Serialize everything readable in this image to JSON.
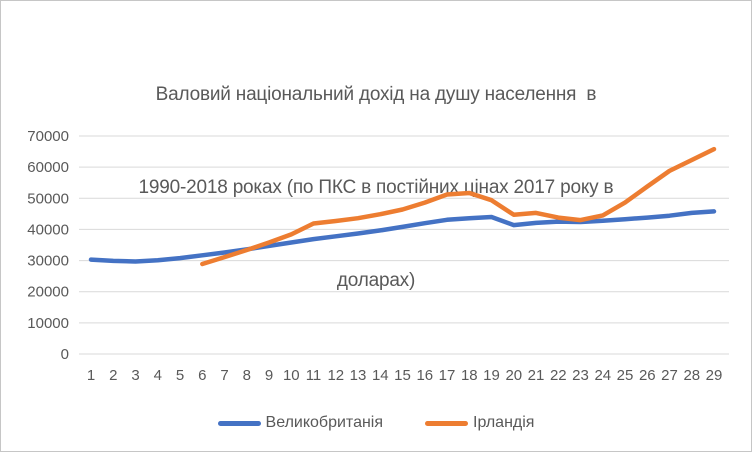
{
  "chart_data": {
    "type": "line",
    "title": "Валовий національний дохід на душу населення  в 1990-2018 роках (по ПКС в постійних цінах 2017 року в доларах)",
    "title_lines": [
      "Валовий національний дохід на душу населення  в",
      "1990-2018 роках (по ПКС в постійних цінах 2017 року в",
      "доларах)"
    ],
    "categories": [
      "1",
      "2",
      "3",
      "4",
      "5",
      "6",
      "7",
      "8",
      "9",
      "10",
      "11",
      "12",
      "13",
      "14",
      "15",
      "16",
      "17",
      "18",
      "19",
      "20",
      "21",
      "22",
      "23",
      "24",
      "25",
      "26",
      "27",
      "28",
      "29"
    ],
    "series": [
      {
        "id": "uk",
        "name": "Великобританія",
        "color": "#4472C4",
        "values": [
          30300,
          29900,
          29700,
          30100,
          30800,
          31700,
          32600,
          33600,
          34700,
          35800,
          36900,
          37800,
          38700,
          39700,
          40800,
          42000,
          43100,
          43600,
          44000,
          41400,
          42100,
          42500,
          42400,
          42800,
          43300,
          43800,
          44400,
          45300,
          45800
        ]
      },
      {
        "id": "ireland",
        "name": "Ірландія",
        "color": "#ED7D31",
        "values": [
          null,
          null,
          null,
          null,
          null,
          28900,
          31100,
          33400,
          35800,
          38400,
          41900,
          42700,
          43600,
          44900,
          46400,
          48600,
          51200,
          51700,
          49400,
          44700,
          45300,
          43800,
          43000,
          44500,
          48600,
          53800,
          58800,
          62300,
          65800
        ]
      }
    ],
    "xlabel": "",
    "ylabel": "",
    "ylim": [
      0,
      70000
    ],
    "yticks": [
      0,
      10000,
      20000,
      30000,
      40000,
      50000,
      60000,
      70000
    ],
    "grid": "horizontal",
    "legend_position": "bottom"
  },
  "styles": {
    "title_color": "#595959",
    "axis_label_color": "#595959",
    "gridline_color": "#D9D9D9",
    "border_color": "#C6C6C6",
    "background": "#FFFFFF"
  }
}
